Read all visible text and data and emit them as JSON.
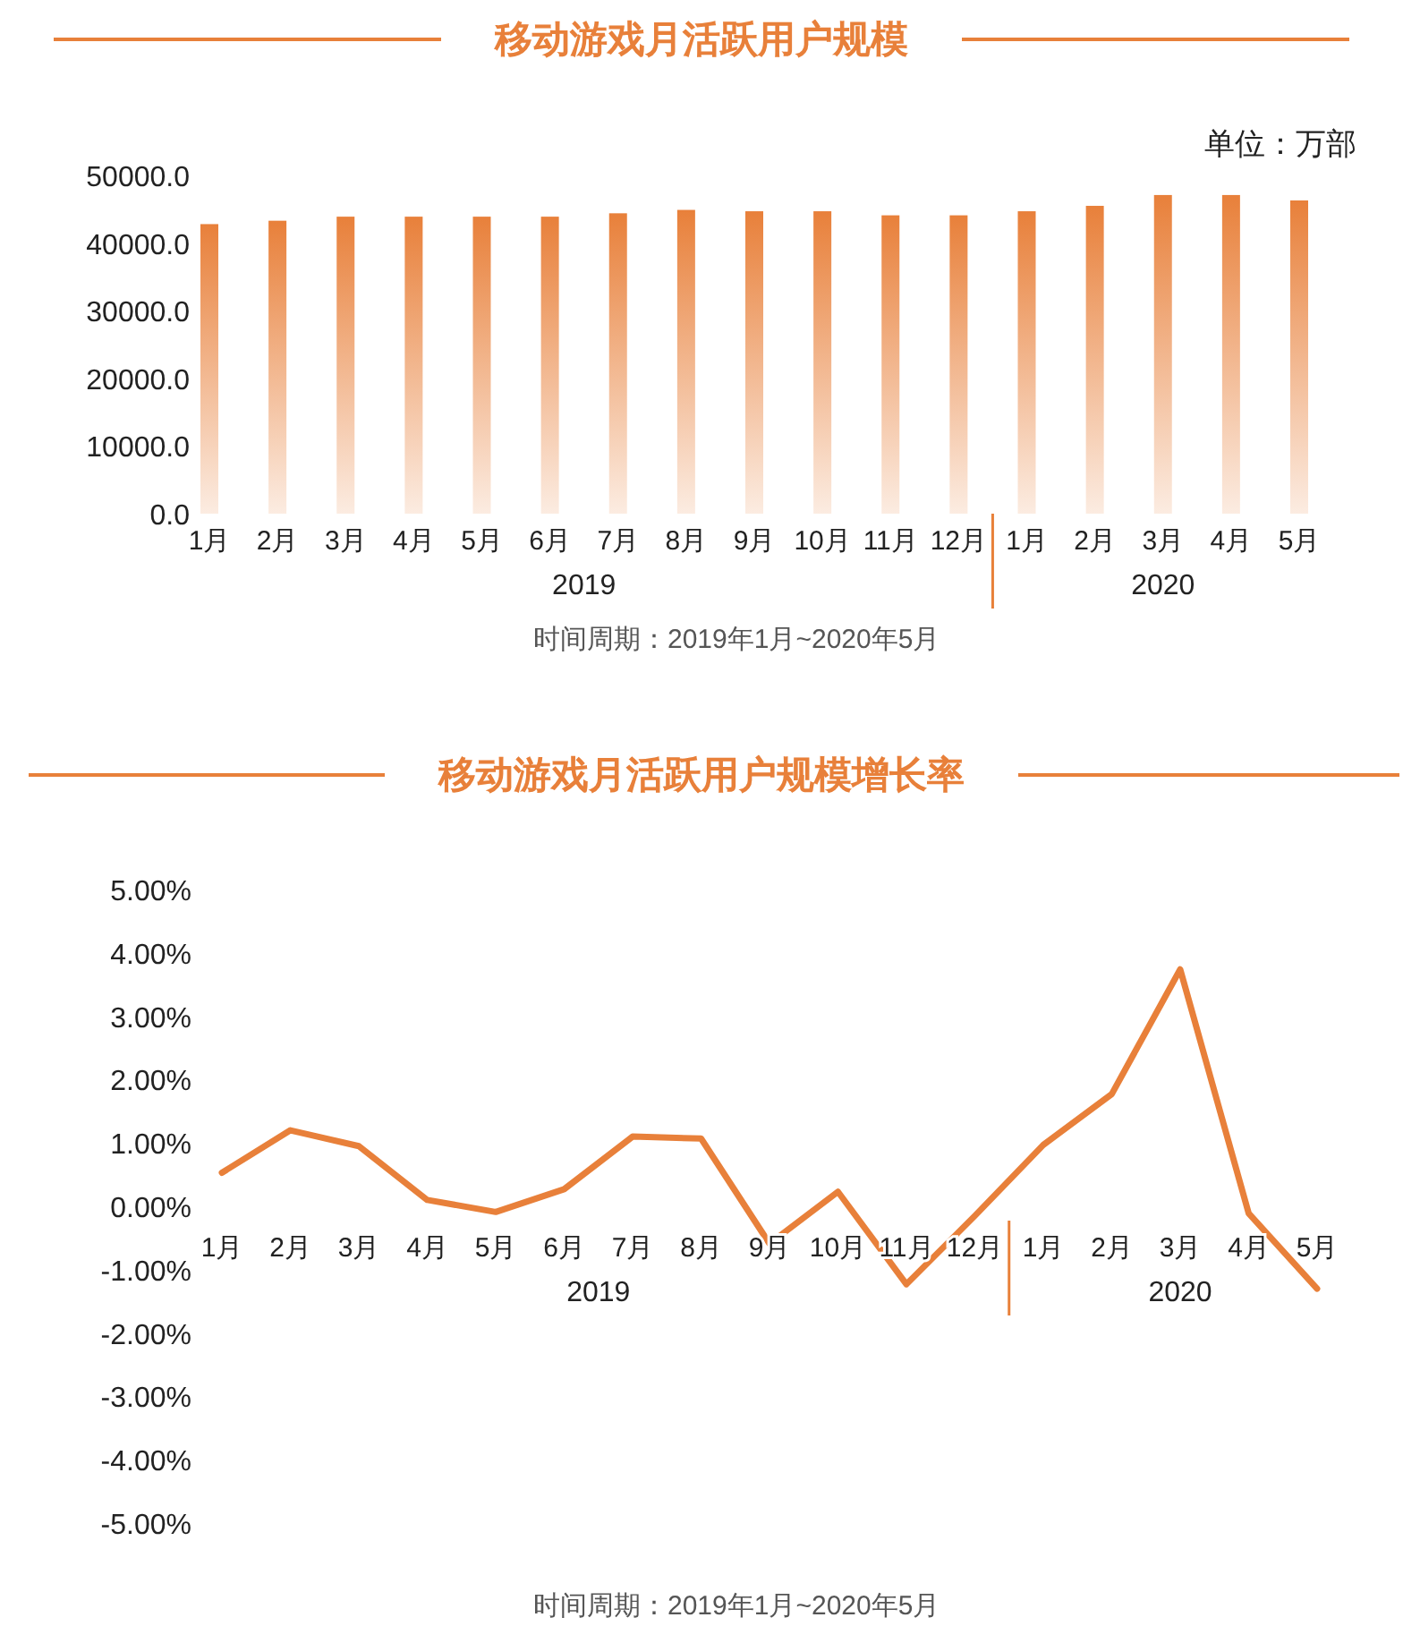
{
  "chart_data": [
    {
      "type": "bar",
      "title": "移动游戏月活跃用户规模",
      "subtitle": "单位：万部",
      "categories": [
        "1月",
        "2月",
        "3月",
        "4月",
        "5月",
        "6月",
        "7月",
        "8月",
        "9月",
        "10月",
        "11月",
        "12月",
        "1月",
        "2月",
        "3月",
        "4月",
        "5月"
      ],
      "values": [
        42800,
        43300,
        43900,
        43900,
        43900,
        43900,
        44400,
        44900,
        44700,
        44700,
        44100,
        44100,
        44700,
        45500,
        47100,
        47100,
        46300
      ],
      "color": "#e8803a",
      "ylim": [
        0,
        50000
      ],
      "yticks": [
        {
          "value": 0,
          "label": "0.0"
        },
        {
          "value": 10000,
          "label": "10000.0"
        },
        {
          "value": 20000,
          "label": "20000.0"
        },
        {
          "value": 30000,
          "label": "30000.0"
        },
        {
          "value": 40000,
          "label": "40000.0"
        },
        {
          "value": 50000,
          "label": "50000.0"
        }
      ],
      "annotations": [
        "2019",
        "2020",
        "时间周期：2019年1月~2020年5月"
      ]
    },
    {
      "type": "line",
      "title": "移动游戏月活跃用户规模增长率",
      "categories": [
        "1月",
        "2月",
        "3月",
        "4月",
        "5月",
        "6月",
        "7月",
        "8月",
        "9月",
        "10月",
        "11月",
        "12月",
        "1月",
        "2月",
        "3月",
        "4月",
        "5月"
      ],
      "values": [
        0.53,
        1.2,
        0.95,
        0.1,
        -0.09,
        0.27,
        1.1,
        1.07,
        -0.59,
        0.23,
        -1.23,
        -0.15,
        0.97,
        1.77,
        3.74,
        -0.11,
        -1.3
      ],
      "color": "#e8803a",
      "ylim": [
        -5,
        5
      ],
      "yticks": [
        {
          "value": -5,
          "label": "-5.00%"
        },
        {
          "value": -4,
          "label": "-4.00%"
        },
        {
          "value": -3,
          "label": "-3.00%"
        },
        {
          "value": -2,
          "label": "-2.00%"
        },
        {
          "value": -1,
          "label": "-1.00%"
        },
        {
          "value": 0,
          "label": "0.00%"
        },
        {
          "value": 1,
          "label": "1.00%"
        },
        {
          "value": 2,
          "label": "2.00%"
        },
        {
          "value": 3,
          "label": "3.00%"
        },
        {
          "value": 4,
          "label": "4.00%"
        },
        {
          "value": 5,
          "label": "5.00%"
        }
      ],
      "annotations": [
        "2019",
        "2020",
        "时间周期：2019年1月~2020年5月"
      ]
    }
  ]
}
